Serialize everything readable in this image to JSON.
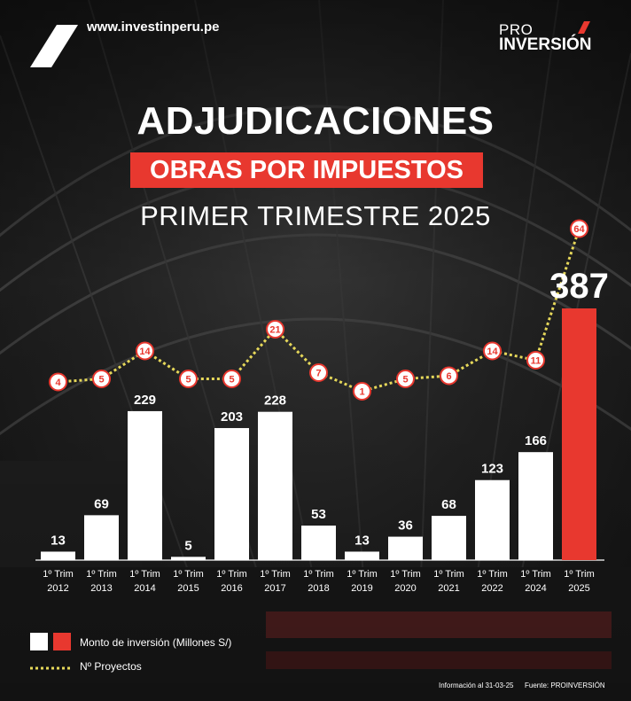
{
  "header": {
    "website": "www.investinperu.pe",
    "brand_pro": "PRO",
    "brand_inversion": "INVERSIÓN"
  },
  "title": "ADJUDICACIONES",
  "subtitle": "OBRAS POR IMPUESTOS",
  "period": "PRIMER TRIMESTRE 2025",
  "colors": {
    "bar_default": "#ffffff",
    "bar_highlight": "#e8382f",
    "line": "#e6d85a",
    "marker_border": "#e8382f"
  },
  "chart_data": {
    "type": "bar",
    "categories": [
      [
        "1º Trim",
        "2012"
      ],
      [
        "1º Trim",
        "2013"
      ],
      [
        "1º Trim",
        "2014"
      ],
      [
        "1º Trim",
        "2015"
      ],
      [
        "1º Trim",
        "2016"
      ],
      [
        "1º Trim",
        "2017"
      ],
      [
        "1º Trim",
        "2018"
      ],
      [
        "1º Trim",
        "2019"
      ],
      [
        "1º Trim",
        "2020"
      ],
      [
        "1º Trim",
        "2021"
      ],
      [
        "1º Trim",
        "2022"
      ],
      [
        "1º Trim",
        "2024"
      ],
      [
        "1º Trim",
        "2025"
      ]
    ],
    "series": [
      {
        "name": "Monto de inversión (Millones S/)",
        "type": "bar",
        "values": [
          13,
          69,
          229,
          5,
          203,
          228,
          53,
          13,
          36,
          68,
          123,
          166,
          387
        ]
      },
      {
        "name": "Nº Proyectos",
        "type": "line",
        "values": [
          4,
          5,
          14,
          5,
          5,
          21,
          7,
          1,
          5,
          6,
          14,
          11,
          64
        ]
      }
    ],
    "highlight_index": 12
  },
  "legend": {
    "amount_label": "Monto de inversión (Millones S/)",
    "projects_label": "Nº Proyectos"
  },
  "footer": {
    "info": "Información al 31-03-25",
    "source": "Fuente: PROINVERSIÓN"
  }
}
